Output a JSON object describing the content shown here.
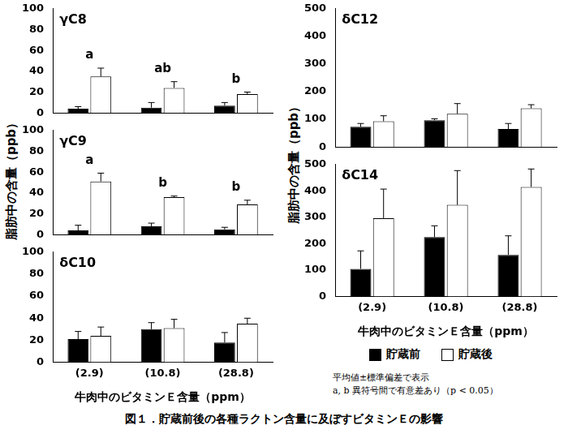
{
  "figure": {
    "caption": "図１．貯蔵前後の各種ラクトン含量に及ぼすビタミンＥの影響",
    "y_label": "脂肪中の含量（ppb）",
    "notes": [
      "平均値±標準偏差で表示",
      "a, b 異符号間で有意差あり（p < 0.05）"
    ]
  },
  "chart_data": [
    {
      "type": "bar",
      "title": "γC8",
      "categories": [
        "(2.9)",
        "(10.8)",
        "(28.8)"
      ],
      "series": [
        {
          "name": "貯蔵前",
          "color": "#000000",
          "values": [
            4,
            5,
            7
          ],
          "errors": [
            2,
            5,
            3
          ]
        },
        {
          "name": "貯蔵後",
          "color": "#ffffff",
          "values": [
            35,
            24,
            18
          ],
          "errors": [
            8,
            6,
            2
          ]
        }
      ],
      "significance": [
        "a",
        "ab",
        "b"
      ],
      "ylim": [
        0,
        100
      ],
      "yticks": [
        0,
        20,
        40,
        60,
        80,
        100
      ],
      "grid": false,
      "tick_labels": "y"
    },
    {
      "type": "bar",
      "title": "γC9",
      "categories": [
        "(2.9)",
        "(10.8)",
        "(28.8)"
      ],
      "series": [
        {
          "name": "貯蔵前",
          "color": "#000000",
          "values": [
            4,
            8,
            5
          ],
          "errors": [
            5,
            3,
            2
          ]
        },
        {
          "name": "貯蔵後",
          "color": "#ffffff",
          "values": [
            51,
            36,
            29
          ],
          "errors": [
            8,
            1,
            4
          ]
        }
      ],
      "significance": [
        "a",
        "b",
        "b"
      ],
      "ylim": [
        0,
        100
      ],
      "yticks": [
        0,
        20,
        40,
        60,
        80,
        100
      ],
      "grid": false,
      "tick_labels": "y"
    },
    {
      "type": "bar",
      "title": "δC10",
      "categories": [
        "(2.9)",
        "(10.8)",
        "(28.8)"
      ],
      "series": [
        {
          "name": "貯蔵前",
          "color": "#000000",
          "values": [
            21,
            30,
            18
          ],
          "errors": [
            7,
            6,
            9
          ]
        },
        {
          "name": "貯蔵後",
          "color": "#ffffff",
          "values": [
            24,
            31,
            35
          ],
          "errors": [
            8,
            8,
            5
          ]
        }
      ],
      "x_label": "牛肉中のビタミンＥ含量（ppm）",
      "ylim": [
        0,
        100
      ],
      "yticks": [
        0,
        20,
        40,
        60,
        80,
        100
      ],
      "grid": false
    },
    {
      "type": "bar",
      "title": "δC12",
      "categories": [
        "(2.9)",
        "(10.8)",
        "(28.8)"
      ],
      "series": [
        {
          "name": "貯蔵前",
          "color": "#000000",
          "values": [
            73,
            97,
            65
          ],
          "errors": [
            12,
            5,
            20
          ]
        },
        {
          "name": "貯蔵後",
          "color": "#ffffff",
          "values": [
            93,
            120,
            140
          ],
          "errors": [
            20,
            37,
            13
          ]
        }
      ],
      "ylim": [
        0,
        500
      ],
      "yticks": [
        0,
        100,
        200,
        300,
        400,
        500
      ],
      "grid": false,
      "tick_labels": "y"
    },
    {
      "type": "bar",
      "title": "δC14",
      "categories": [
        "(2.9)",
        "(10.8)",
        "(28.8)"
      ],
      "series": [
        {
          "name": "貯蔵前",
          "color": "#000000",
          "values": [
            105,
            225,
            158
          ],
          "errors": [
            68,
            43,
            72
          ]
        },
        {
          "name": "貯蔵後",
          "color": "#ffffff",
          "values": [
            297,
            347,
            415
          ],
          "errors": [
            110,
            130,
            68
          ]
        }
      ],
      "x_label": "牛肉中のビタミンＥ含量（ppm）",
      "ylim": [
        0,
        500
      ],
      "yticks": [
        0,
        100,
        200,
        300,
        400,
        500
      ],
      "grid": false
    }
  ]
}
